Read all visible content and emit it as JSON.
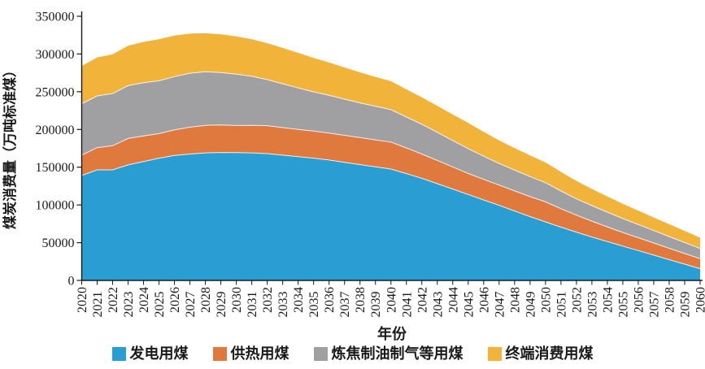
{
  "figure": {
    "background": "#ffffff",
    "axis_color": "#1a1a1a",
    "tick_label_color": "#1a1a1a"
  },
  "chart_data": {
    "type": "area",
    "stacked": true,
    "title": "",
    "xlabel": "年份",
    "ylabel": "煤炭消费量（万吨标准煤）",
    "ylim": [
      0,
      350000
    ],
    "y_ticks": [
      0,
      50000,
      100000,
      150000,
      200000,
      250000,
      300000,
      350000
    ],
    "grid": false,
    "legend_position": "bottom",
    "x": [
      2020,
      2021,
      2022,
      2023,
      2024,
      2025,
      2026,
      2027,
      2028,
      2029,
      2030,
      2031,
      2032,
      2033,
      2034,
      2035,
      2036,
      2037,
      2038,
      2039,
      2040,
      2041,
      2042,
      2043,
      2044,
      2045,
      2046,
      2047,
      2048,
      2049,
      2050,
      2051,
      2052,
      2053,
      2054,
      2055,
      2056,
      2057,
      2058,
      2059,
      2060
    ],
    "series": [
      {
        "name": "发电用煤",
        "color": "#2A9DD2",
        "values": [
          139000,
          146500,
          146500,
          153000,
          157500,
          162000,
          165500,
          167500,
          169000,
          169500,
          169300,
          169000,
          168000,
          166000,
          164000,
          162000,
          159500,
          156500,
          153500,
          150500,
          147500,
          141500,
          135300,
          128200,
          121000,
          113800,
          106600,
          99500,
          92000,
          84500,
          77500,
          70500,
          64000,
          57500,
          51500,
          45500,
          39500,
          33500,
          27500,
          21500,
          15500
        ]
      },
      {
        "name": "供热用煤",
        "color": "#E0793D",
        "values": [
          27000,
          29500,
          32000,
          35000,
          34000,
          32500,
          34000,
          35500,
          36500,
          36500,
          36000,
          36500,
          37000,
          36500,
          36000,
          35800,
          35700,
          35700,
          35700,
          35700,
          35800,
          34000,
          32200,
          30800,
          29300,
          27900,
          27300,
          26800,
          26600,
          26500,
          26500,
          24500,
          22500,
          21000,
          19500,
          18000,
          17000,
          16000,
          15000,
          14200,
          13300
        ]
      },
      {
        "name": "炼焦制油制气等用煤",
        "color": "#A0A0A3",
        "values": [
          68000,
          68500,
          69000,
          70000,
          70500,
          70000,
          70500,
          71500,
          71000,
          69500,
          68000,
          65000,
          61000,
          58000,
          55000,
          52000,
          50000,
          48000,
          46000,
          44500,
          43000,
          41000,
          39400,
          37200,
          35000,
          32900,
          30700,
          28600,
          27500,
          26500,
          25500,
          23500,
          21500,
          20500,
          19500,
          18500,
          17500,
          16500,
          15500,
          14500,
          13500
        ]
      },
      {
        "name": "终端消费用煤",
        "color": "#F2B33A",
        "values": [
          50000,
          51000,
          52000,
          53000,
          54000,
          55000,
          54500,
          52500,
          51000,
          50500,
          50000,
          49000,
          48300,
          47500,
          46500,
          45000,
          43500,
          42000,
          40500,
          39000,
          37600,
          36600,
          35700,
          35000,
          34500,
          34000,
          32200,
          30500,
          29200,
          28000,
          26800,
          25300,
          23800,
          22200,
          20800,
          19500,
          18400,
          17400,
          16400,
          15400,
          14400
        ]
      }
    ]
  }
}
